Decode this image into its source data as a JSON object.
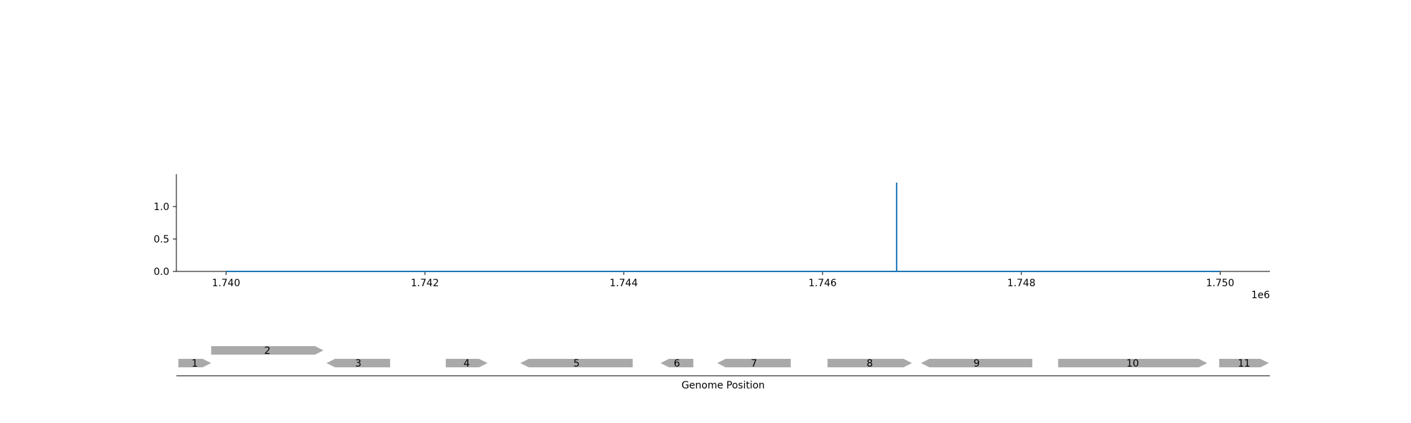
{
  "chart_data": {
    "type": "line",
    "title": "",
    "xlabel": "Genome Position",
    "ylabel": "",
    "x_offset_label": "1e6",
    "xlim": [
      1739500,
      1750500
    ],
    "ylim": [
      0,
      1.5
    ],
    "x_ticks": [
      1740000,
      1742000,
      1744000,
      1746000,
      1748000,
      1750000
    ],
    "x_tick_labels": [
      "1.740",
      "1.742",
      "1.744",
      "1.746",
      "1.748",
      "1.750"
    ],
    "y_ticks": [
      0.0,
      0.5,
      1.0
    ],
    "y_tick_labels": [
      "0.0",
      "0.5",
      "1.0"
    ],
    "grid": false,
    "series": [
      {
        "color": "#1f77b4",
        "x": [
          1740000,
          1746745,
          1746745,
          1746745,
          1750000
        ],
        "y": [
          0,
          0,
          1.37,
          0,
          0
        ]
      }
    ],
    "genes": [
      {
        "label": "1",
        "start": 1739520,
        "end": 1739850,
        "strand": "+",
        "row": 0
      },
      {
        "label": "2",
        "start": 1739850,
        "end": 1740980,
        "strand": "+",
        "row": 1
      },
      {
        "label": "3",
        "start": 1741010,
        "end": 1741650,
        "strand": "-",
        "row": 0
      },
      {
        "label": "4",
        "start": 1742210,
        "end": 1742630,
        "strand": "+",
        "row": 0
      },
      {
        "label": "5",
        "start": 1742960,
        "end": 1744090,
        "strand": "-",
        "row": 0
      },
      {
        "label": "6",
        "start": 1744370,
        "end": 1744700,
        "strand": "-",
        "row": 0
      },
      {
        "label": "7",
        "start": 1744940,
        "end": 1745680,
        "strand": "-",
        "row": 0
      },
      {
        "label": "8",
        "start": 1746050,
        "end": 1746900,
        "strand": "+",
        "row": 0
      },
      {
        "label": "9",
        "start": 1746990,
        "end": 1748110,
        "strand": "-",
        "row": 0
      },
      {
        "label": "10",
        "start": 1748370,
        "end": 1749870,
        "strand": "+",
        "row": 0
      },
      {
        "label": "11",
        "start": 1749990,
        "end": 1750490,
        "strand": "+",
        "row": 0
      }
    ],
    "gene_color": "#a9a9a9"
  }
}
